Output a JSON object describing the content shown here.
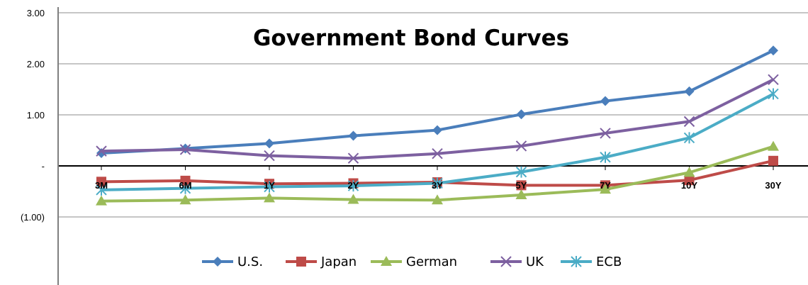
{
  "chart_data": {
    "type": "line",
    "title": "Government Bond Curves",
    "xlabel": "",
    "ylabel": "",
    "categories": [
      "3M",
      "6M",
      "1Y",
      "2Y",
      "3Y",
      "5Y",
      "7Y",
      "10Y",
      "30Y"
    ],
    "ylim": [
      -1.5,
      3.0
    ],
    "yticks": [
      {
        "value": 3.0,
        "label": "3.00"
      },
      {
        "value": 2.0,
        "label": "2.00"
      },
      {
        "value": 1.0,
        "label": "1.00"
      },
      {
        "value": 0.0,
        "label": "-"
      },
      {
        "value": -1.0,
        "label": "(1.00)"
      }
    ],
    "grid": true,
    "legend_position": "bottom",
    "series": [
      {
        "name": "U.S.",
        "color": "#4a7ebb",
        "marker": "diamond",
        "values": [
          0.25,
          0.34,
          0.44,
          0.59,
          0.7,
          1.01,
          1.27,
          1.46,
          2.26
        ]
      },
      {
        "name": "Japan",
        "color": "#be4b48",
        "marker": "square",
        "values": [
          -0.31,
          -0.29,
          -0.35,
          -0.34,
          -0.32,
          -0.38,
          -0.38,
          -0.28,
          0.1
        ]
      },
      {
        "name": "German",
        "color": "#9bbb59",
        "marker": "triangle",
        "values": [
          -0.69,
          -0.67,
          -0.63,
          -0.66,
          -0.67,
          -0.57,
          -0.46,
          -0.13,
          0.38
        ]
      },
      {
        "name": "UK",
        "color": "#7d60a0",
        "marker": "x",
        "values": [
          0.29,
          0.32,
          0.2,
          0.15,
          0.24,
          0.39,
          0.64,
          0.87,
          1.69
        ]
      },
      {
        "name": "ECB",
        "color": "#4bacc6",
        "marker": "star",
        "values": [
          -0.47,
          -0.44,
          -0.41,
          -0.39,
          -0.34,
          -0.12,
          0.17,
          0.55,
          1.41
        ]
      }
    ]
  }
}
